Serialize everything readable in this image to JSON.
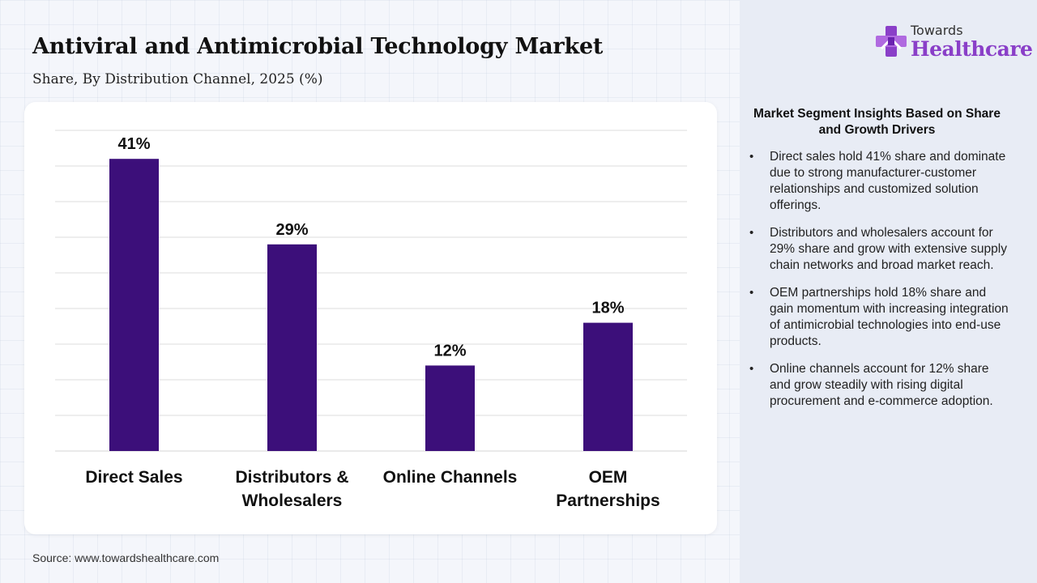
{
  "header": {
    "title": "Antiviral and Antimicrobial Technology Market",
    "subtitle": "Share, By Distribution Channel, 2025 (%)"
  },
  "source": "Source: www.towardshealthcare.com",
  "logo": {
    "line1": "Towards",
    "line2": "Healthcare"
  },
  "insights": {
    "title": "Market Segment Insights Based on Share and Growth Drivers",
    "items": [
      "Direct sales hold 41% share and dominate due to strong manufacturer-customer relationships and customized solution offerings.",
      "Distributors and wholesalers account for 29% share and grow with extensive supply chain networks and broad market reach.",
      "OEM partnerships hold 18% share and gain momentum with increasing integration of antimicrobial technologies into end-use products.",
      "Online channels account for 12% share and grow steadily with rising digital procurement and e-commerce adoption."
    ]
  },
  "colors": {
    "bar": "#3c0f7a",
    "brand_purple": "#8a3fc8",
    "gridline": "#dddddd"
  },
  "chart_data": {
    "type": "bar",
    "categories": [
      [
        "Direct Sales"
      ],
      [
        "Distributors &",
        "Wholesalers"
      ],
      [
        "Online Channels"
      ],
      [
        "OEM",
        "Partnerships"
      ]
    ],
    "values": [
      41,
      29,
      12,
      18
    ],
    "data_labels": [
      "41%",
      "29%",
      "12%",
      "18%"
    ],
    "ylim": [
      0,
      45
    ],
    "grid": true,
    "gridline_step": 5,
    "title": "",
    "xlabel": "",
    "ylabel": ""
  }
}
